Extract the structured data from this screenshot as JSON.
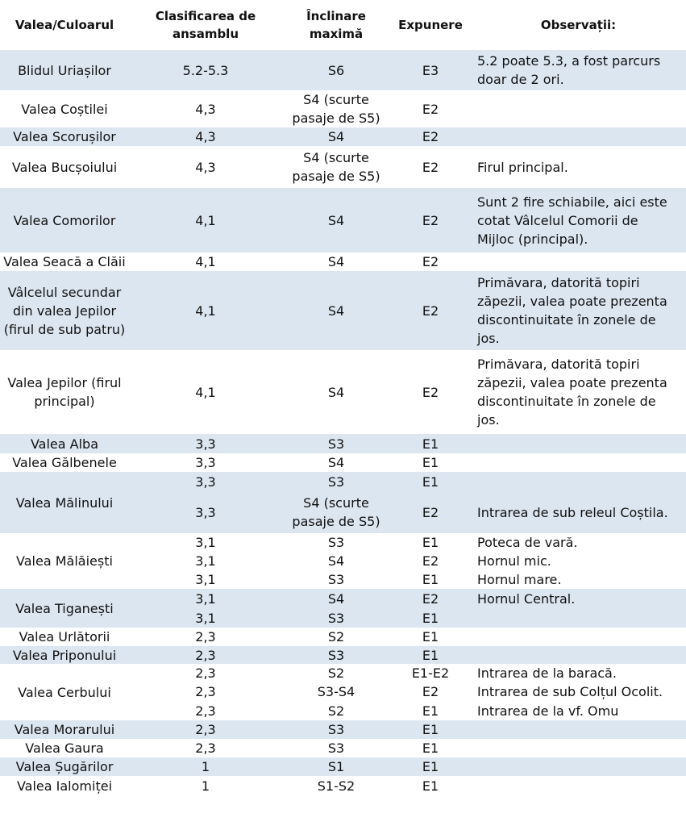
{
  "headers": {
    "valley": "Valea/Culoarul",
    "grade": "Clasificarea de ansamblu",
    "incline": "Înclinare maximă",
    "exposure": "Expunere",
    "notes": "Observații:"
  },
  "groups": [
    {
      "name": "Blidul Uriașilor",
      "shaded": true,
      "rows": [
        {
          "grade": "5.2-5.3",
          "incline": "S6",
          "exposure": "E3",
          "notes": "5.2 poate 5.3, a fost parcurs doar de 2 ori."
        }
      ]
    },
    {
      "name": "Valea Coștilei",
      "shaded": false,
      "rows": [
        {
          "grade": "4,3",
          "incline": "S4 (scurte pasaje de S5)",
          "exposure": "E2",
          "notes": ""
        }
      ]
    },
    {
      "name": "Valea Scorușilor",
      "shaded": true,
      "rows": [
        {
          "grade": "4,3",
          "incline": "S4",
          "exposure": "E2",
          "notes": ""
        }
      ]
    },
    {
      "name": "Valea Bucșoiului",
      "shaded": false,
      "rows": [
        {
          "grade": "4,3",
          "incline": "S4 (scurte pasaje de S5)",
          "exposure": "E2",
          "notes": "Firul principal."
        }
      ]
    },
    {
      "name": "Valea Comorilor",
      "shaded": true,
      "rows": [
        {
          "grade": "4,1",
          "incline": "S4",
          "exposure": "E2",
          "notes": "Sunt 2 fire schiabile, aici este cotat Vâlcelul Comorii de Mijloc (principal)."
        }
      ]
    },
    {
      "name": "Valea Seacă a Clăii",
      "shaded": false,
      "rows": [
        {
          "grade": "4,1",
          "incline": "S4",
          "exposure": "E2",
          "notes": ""
        }
      ]
    },
    {
      "name": "Vâlcelul secundar din valea Jepilor (firul de sub patru)",
      "shaded": true,
      "rows": [
        {
          "grade": "4,1",
          "incline": "S4",
          "exposure": "E2",
          "notes": "Primăvara, datorită topiri zăpezii, valea poate prezenta discontinuitate în zonele de jos."
        }
      ]
    },
    {
      "name": "Valea Jepilor (firul principal)",
      "shaded": false,
      "rows": [
        {
          "grade": "4,1",
          "incline": "S4",
          "exposure": "E2",
          "notes": "Primăvara, datorită topiri zăpezii, valea poate prezenta discontinuitate în zonele de jos."
        }
      ]
    },
    {
      "name": "Valea Alba",
      "shaded": true,
      "rows": [
        {
          "grade": "3,3",
          "incline": "S3",
          "exposure": "E1",
          "notes": ""
        }
      ]
    },
    {
      "name": "Valea Gălbenele",
      "shaded": false,
      "rows": [
        {
          "grade": "3,3",
          "incline": "S4",
          "exposure": "E1",
          "notes": ""
        }
      ]
    },
    {
      "name": "Valea Mălinului",
      "shaded": true,
      "rows": [
        {
          "grade": "3,3",
          "incline": "S3",
          "exposure": "E1",
          "notes": ""
        },
        {
          "grade": "3,3",
          "incline": "S4 (scurte pasaje de S5)",
          "exposure": "E2",
          "notes": "Intrarea de sub releul Coștila."
        }
      ]
    },
    {
      "name": "Valea Mălăiești",
      "shaded": false,
      "rows": [
        {
          "grade": "3,1",
          "incline": "S3",
          "exposure": "E1",
          "notes": "Poteca de vară."
        },
        {
          "grade": "3,1",
          "incline": "S4",
          "exposure": "E2",
          "notes": "Hornul mic."
        },
        {
          "grade": "3,1",
          "incline": "S3",
          "exposure": "E1",
          "notes": "Hornul mare."
        }
      ]
    },
    {
      "name": "Valea Tiganești",
      "shaded": true,
      "rows": [
        {
          "grade": "3,1",
          "incline": "S4",
          "exposure": "E2",
          "notes": "Hornul Central."
        },
        {
          "grade": "3,1",
          "incline": "S3",
          "exposure": "E1",
          "notes": ""
        }
      ]
    },
    {
      "name": "Valea Urlătorii",
      "shaded": false,
      "rows": [
        {
          "grade": "2,3",
          "incline": "S2",
          "exposure": "E1",
          "notes": ""
        }
      ]
    },
    {
      "name": "Valea Priponului",
      "shaded": true,
      "rows": [
        {
          "grade": "2,3",
          "incline": "S3",
          "exposure": "E1",
          "notes": ""
        }
      ]
    },
    {
      "name": "Valea Cerbului",
      "shaded": false,
      "rows": [
        {
          "grade": "2,3",
          "incline": "S2",
          "exposure": "E1-E2",
          "notes": "Intrarea de la baracă."
        },
        {
          "grade": "2,3",
          "incline": "S3-S4",
          "exposure": "E2",
          "notes": "Intrarea de sub Colțul Ocolit."
        },
        {
          "grade": "2,3",
          "incline": "S2",
          "exposure": "E1",
          "notes": "Intrarea de la vf. Omu"
        }
      ]
    },
    {
      "name": "Valea Morarului",
      "shaded": true,
      "rows": [
        {
          "grade": "2,3",
          "incline": "S3",
          "exposure": "E1",
          "notes": ""
        }
      ]
    },
    {
      "name": "Valea Gaura",
      "shaded": false,
      "rows": [
        {
          "grade": "2,3",
          "incline": "S3",
          "exposure": "E1",
          "notes": ""
        }
      ]
    },
    {
      "name": "Valea Șugărilor",
      "shaded": true,
      "rows": [
        {
          "grade": "1",
          "incline": "S1",
          "exposure": "E1",
          "notes": ""
        }
      ]
    },
    {
      "name": "Valea Ialomiței",
      "shaded": false,
      "rows": [
        {
          "grade": "1",
          "incline": "S1-S2",
          "exposure": "E1",
          "notes": ""
        }
      ]
    }
  ]
}
